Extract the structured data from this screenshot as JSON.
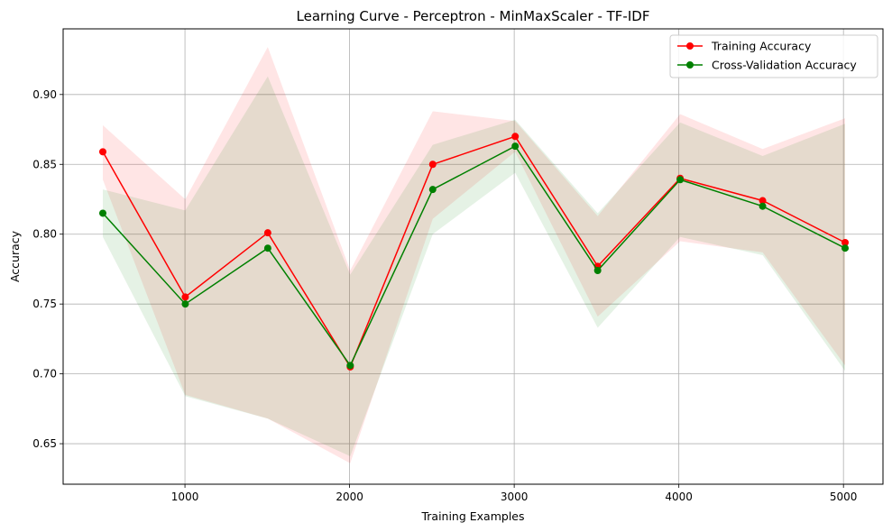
{
  "chart_data": {
    "type": "line",
    "title": "Learning Curve - Perceptron - MinMaxScaler - TF-IDF",
    "xlabel": "Training Examples",
    "ylabel": "Accuracy",
    "xlim": [
      260,
      5240
    ],
    "ylim": [
      0.621,
      0.947
    ],
    "xticks": [
      1000,
      2000,
      3000,
      4000,
      5000
    ],
    "yticks": [
      0.65,
      0.7,
      0.75,
      0.8,
      0.85,
      0.9
    ],
    "ytick_labels": [
      "0.65",
      "0.70",
      "0.75",
      "0.80",
      "0.85",
      "0.90"
    ],
    "grid": true,
    "legend_position": "top-right",
    "x": [
      501,
      1002,
      1503,
      2004,
      2505,
      3006,
      3507,
      4008,
      4509,
      5010
    ],
    "series": [
      {
        "name": "Training Accuracy",
        "color": "#ff0000",
        "values": [
          0.859,
          0.755,
          0.801,
          0.705,
          0.85,
          0.87,
          0.777,
          0.84,
          0.824,
          0.794
        ],
        "lower": [
          0.839,
          0.685,
          0.668,
          0.636,
          0.811,
          0.859,
          0.741,
          0.795,
          0.787,
          0.706
        ],
        "upper": [
          0.878,
          0.825,
          0.934,
          0.774,
          0.888,
          0.881,
          0.813,
          0.886,
          0.861,
          0.883
        ]
      },
      {
        "name": "Cross-Validation Accuracy",
        "color": "#008000",
        "values": [
          0.815,
          0.75,
          0.79,
          0.706,
          0.832,
          0.863,
          0.774,
          0.839,
          0.82,
          0.79
        ],
        "lower": [
          0.798,
          0.684,
          0.668,
          0.641,
          0.8,
          0.844,
          0.733,
          0.798,
          0.785,
          0.702
        ],
        "upper": [
          0.832,
          0.817,
          0.913,
          0.771,
          0.864,
          0.882,
          0.815,
          0.88,
          0.856,
          0.879
        ]
      }
    ]
  }
}
